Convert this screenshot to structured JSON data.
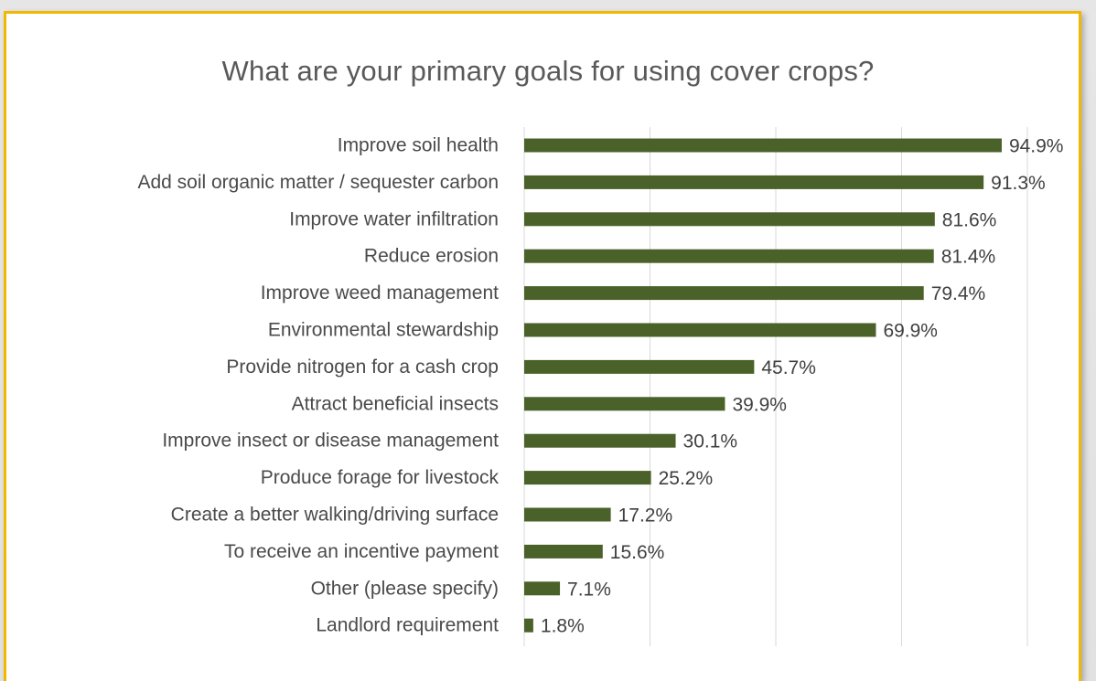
{
  "chart_data": {
    "type": "bar",
    "orientation": "horizontal",
    "title": "What are your primary goals for using cover crops?",
    "xlabel": "",
    "ylabel": "",
    "categories": [
      "Improve soil health",
      "Add soil organic matter / sequester carbon",
      "Improve water infiltration",
      "Reduce erosion",
      "Improve weed management",
      "Environmental stewardship",
      "Provide nitrogen for a cash crop",
      "Attract beneficial insects",
      "Improve insect or disease management",
      "Produce forage for livestock",
      "Create a better walking/driving surface",
      "To receive an incentive payment",
      "Other (please specify)",
      "Landlord requirement"
    ],
    "values": [
      94.9,
      91.3,
      81.6,
      81.4,
      79.4,
      69.9,
      45.7,
      39.9,
      30.1,
      25.2,
      17.2,
      15.6,
      7.1,
      1.8
    ],
    "value_labels": [
      "94.9%",
      "91.3%",
      "81.6%",
      "81.4%",
      "79.4%",
      "69.9%",
      "45.7%",
      "39.9%",
      "30.1%",
      "25.2%",
      "17.2%",
      "15.6%",
      "7.1%",
      "1.8%"
    ],
    "xlim": [
      0,
      100
    ],
    "grid": true,
    "legend": "none",
    "colors": {
      "bar": "#4a6129",
      "gridline": "#d9d9d9",
      "border": "#f2b800"
    }
  }
}
